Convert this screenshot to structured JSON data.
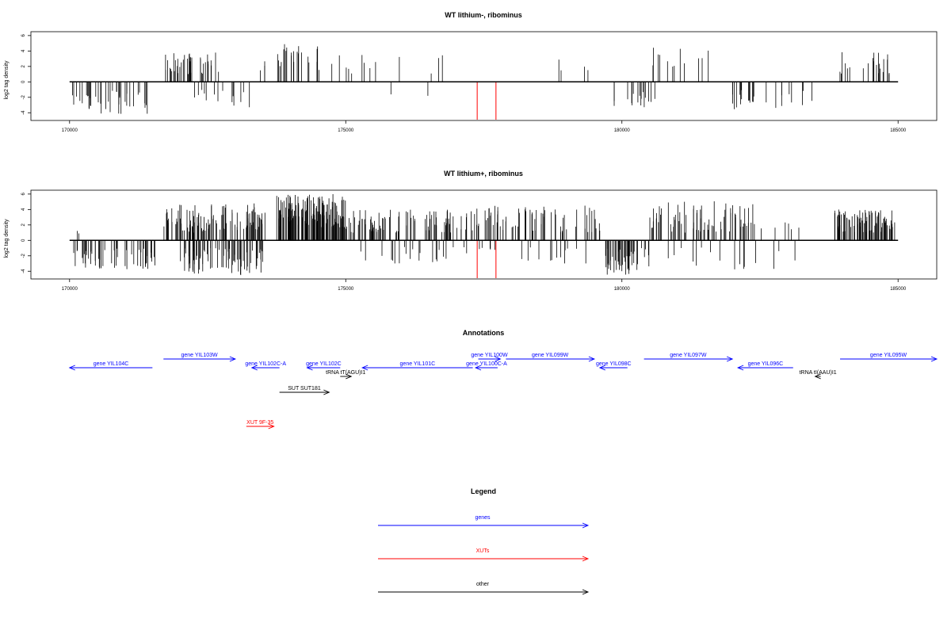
{
  "colors": {
    "genes": "#0000ff",
    "XUTs": "#ff0000",
    "other": "#000000",
    "highlight": "#ff0000"
  },
  "chart_data": [
    {
      "type": "bar",
      "title": "WT lithium-, ribominus",
      "ylabel": "log2 tag density",
      "xlim": [
        169300,
        185700
      ],
      "ylim": [
        -5,
        6.5
      ],
      "x_ticks": [
        "170000",
        "175000",
        "180000",
        "185000"
      ],
      "y_ticks": [
        "-4",
        "-2",
        "0",
        "2",
        "4",
        "6"
      ],
      "x_tick_values": [
        170000,
        175000,
        180000,
        185000
      ],
      "y_tick_values": [
        -4,
        -2,
        0,
        2,
        4,
        6
      ],
      "baseline": 0,
      "highlights": [
        {
          "x": 177380,
          "y": -4.9
        },
        {
          "x": 177720,
          "y": -4.9
        }
      ],
      "series": [
        {
          "group": "minus",
          "x_range": [
            170050,
            171450
          ],
          "y_range": [
            -4.2,
            -1.0
          ],
          "count": 40
        },
        {
          "group": "plus",
          "x_range": [
            171720,
            172780
          ],
          "y_range": [
            1.0,
            3.8
          ],
          "count": 40
        },
        {
          "group": "minus",
          "x_range": [
            172200,
            173300
          ],
          "y_range": [
            -4.0,
            -1.0
          ],
          "count": 14
        },
        {
          "group": "plus",
          "x_range": [
            173300,
            173540
          ],
          "y_range": [
            1.0,
            3.0
          ],
          "count": 3
        },
        {
          "group": "plus",
          "x_range": [
            173750,
            174550
          ],
          "y_range": [
            1.5,
            5.0
          ],
          "count": 22
        },
        {
          "group": "plus",
          "x_range": [
            174700,
            176000
          ],
          "y_range": [
            1.0,
            3.5
          ],
          "count": 10
        },
        {
          "group": "minus",
          "x_range": [
            175800,
            176500
          ],
          "y_range": [
            -2.0,
            -1.5
          ],
          "count": 2
        },
        {
          "group": "plus",
          "x_range": [
            176500,
            177300
          ],
          "y_range": [
            1.0,
            3.5
          ],
          "count": 3
        },
        {
          "group": "plus",
          "x_range": [
            178500,
            179400
          ],
          "y_range": [
            1.0,
            3.0
          ],
          "count": 4
        },
        {
          "group": "minus",
          "x_range": [
            179800,
            180600
          ],
          "y_range": [
            -3.5,
            -1.0
          ],
          "count": 16
        },
        {
          "group": "plus",
          "x_range": [
            180500,
            181700
          ],
          "y_range": [
            1.5,
            4.5
          ],
          "count": 12
        },
        {
          "group": "minus",
          "x_range": [
            182000,
            182400
          ],
          "y_range": [
            -4.5,
            -1.0
          ],
          "count": 14
        },
        {
          "group": "minus",
          "x_range": [
            182600,
            183500
          ],
          "y_range": [
            -4.0,
            -1.0
          ],
          "count": 9
        },
        {
          "group": "plus",
          "x_range": [
            183850,
            184900
          ],
          "y_range": [
            1.0,
            4.0
          ],
          "count": 22
        }
      ]
    },
    {
      "type": "bar",
      "title": "WT lithium+, ribominus",
      "ylabel": "log2 tag density",
      "xlim": [
        169300,
        185700
      ],
      "ylim": [
        -5,
        6.5
      ],
      "x_ticks": [
        "170000",
        "175000",
        "180000",
        "185000"
      ],
      "y_ticks": [
        "-4",
        "-2",
        "0",
        "2",
        "4",
        "6"
      ],
      "x_tick_values": [
        170000,
        175000,
        180000,
        185000
      ],
      "y_tick_values": [
        -4,
        -2,
        0,
        2,
        4,
        6
      ],
      "baseline": 0,
      "highlights": [
        {
          "x": 177380,
          "y": -4.9
        },
        {
          "x": 177720,
          "y": -4.9
        }
      ],
      "series": [
        {
          "group": "minus",
          "x_range": [
            170050,
            171550
          ],
          "y_range": [
            -3.8,
            -1.0
          ],
          "count": 55
        },
        {
          "group": "plus",
          "x_range": [
            170050,
            170200
          ],
          "y_range": [
            0.8,
            1.5
          ],
          "count": 2
        },
        {
          "group": "plus",
          "x_range": [
            171700,
            173550
          ],
          "y_range": [
            1.0,
            4.8
          ],
          "count": 110
        },
        {
          "group": "minus",
          "x_range": [
            172000,
            173500
          ],
          "y_range": [
            -4.5,
            -1.0
          ],
          "count": 80
        },
        {
          "group": "plus",
          "x_range": [
            173750,
            175000
          ],
          "y_range": [
            1.5,
            6.0
          ],
          "count": 140
        },
        {
          "group": "plus",
          "x_range": [
            175000,
            177300
          ],
          "y_range": [
            1.0,
            4.0
          ],
          "count": 90
        },
        {
          "group": "minus",
          "x_range": [
            175200,
            177300
          ],
          "y_range": [
            -3.0,
            -0.8
          ],
          "count": 22
        },
        {
          "group": "plus",
          "x_range": [
            177300,
            179600
          ],
          "y_range": [
            1.0,
            4.5
          ],
          "count": 70
        },
        {
          "group": "minus",
          "x_range": [
            177300,
            179600
          ],
          "y_range": [
            -3.0,
            -0.8
          ],
          "count": 18
        },
        {
          "group": "minus",
          "x_range": [
            179700,
            180500
          ],
          "y_range": [
            -4.5,
            -1.0
          ],
          "count": 45
        },
        {
          "group": "plus",
          "x_range": [
            180500,
            182400
          ],
          "y_range": [
            1.0,
            5.2
          ],
          "count": 70
        },
        {
          "group": "minus",
          "x_range": [
            180600,
            183200
          ],
          "y_range": [
            -4.0,
            -0.8
          ],
          "count": 16
        },
        {
          "group": "plus",
          "x_range": [
            182300,
            183500
          ],
          "y_range": [
            1.0,
            2.5
          ],
          "count": 8
        },
        {
          "group": "plus",
          "x_range": [
            183850,
            184950
          ],
          "y_range": [
            1.0,
            4.0
          ],
          "count": 85
        }
      ]
    }
  ],
  "annotations": {
    "title": "Annotations",
    "features": [
      {
        "label": "gene YIL104C",
        "type": "genes",
        "strand": "-",
        "start": 170000,
        "end": 171500,
        "row": 2
      },
      {
        "label": "gene YIL103W",
        "type": "genes",
        "strand": "+",
        "start": 171700,
        "end": 173000,
        "row": 1
      },
      {
        "label": "gene YIL102C-A",
        "type": "genes",
        "strand": "-",
        "start": 173300,
        "end": 173800,
        "row": 2
      },
      {
        "label": "gene YIL102C",
        "type": "genes",
        "strand": "-",
        "start": 174300,
        "end": 174900,
        "row": 2
      },
      {
        "label": "tRNA tT(AGU)I1",
        "type": "other",
        "strand": "+",
        "start": 174900,
        "end": 175100,
        "row": 3
      },
      {
        "label": "gene YIL101C",
        "type": "genes",
        "strand": "-",
        "start": 175300,
        "end": 177300,
        "row": 2
      },
      {
        "label": "gene YIL100W",
        "type": "genes",
        "strand": "+",
        "start": 177400,
        "end": 177800,
        "row": 1
      },
      {
        "label": "gene YIL100C-A",
        "type": "genes",
        "strand": "-",
        "start": 177350,
        "end": 177750,
        "row": 2
      },
      {
        "label": "gene YIL099W",
        "type": "genes",
        "strand": "+",
        "start": 177900,
        "end": 179500,
        "row": 1
      },
      {
        "label": "gene YIL098C",
        "type": "genes",
        "strand": "-",
        "start": 179600,
        "end": 180100,
        "row": 2
      },
      {
        "label": "gene YIL097W",
        "type": "genes",
        "strand": "+",
        "start": 180400,
        "end": 182000,
        "row": 1
      },
      {
        "label": "gene YIL096C",
        "type": "genes",
        "strand": "-",
        "start": 182100,
        "end": 183100,
        "row": 2
      },
      {
        "label": "gene YIL095W",
        "type": "genes",
        "strand": "+",
        "start": 183950,
        "end": 185700,
        "row": 1
      },
      {
        "label": "tRNA tI(AAU)I1",
        "type": "other",
        "strand": "-",
        "start": 183500,
        "end": 183600,
        "row": 3
      },
      {
        "label": "SUT SUT181",
        "type": "other",
        "strand": "+",
        "start": 173800,
        "end": 174700,
        "row": 4
      },
      {
        "label": "XUT 9F-35",
        "type": "XUTs",
        "strand": "+",
        "start": 173200,
        "end": 173700,
        "row": 5
      }
    ]
  },
  "legend": {
    "title": "Legend",
    "items": [
      {
        "label": "genes",
        "type": "genes"
      },
      {
        "label": "XUTs",
        "type": "XUTs"
      },
      {
        "label": "other",
        "type": "other"
      }
    ]
  }
}
